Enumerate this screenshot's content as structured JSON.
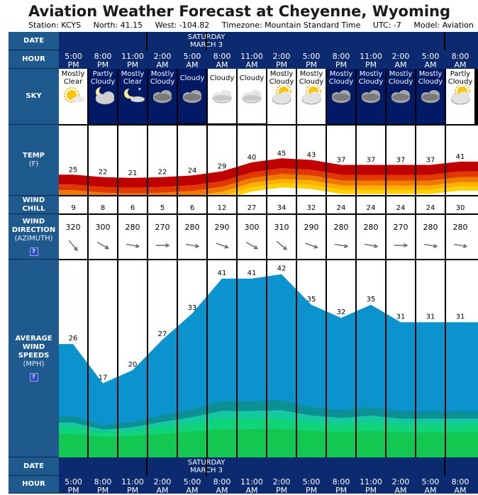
{
  "header": {
    "title": "Aviation Weather Forecast at Cheyenne, Wyoming",
    "station": "Station: KCYS",
    "north": "North: 41.15",
    "west": "West: -104.82",
    "timezone": "Timezone: Mountain Standard Time",
    "utc": "UTC: -7",
    "model": "Model: Aviation"
  },
  "labels": {
    "date": "DATE",
    "hour": "HOUR",
    "sky": "SKY",
    "temp": "TEMP",
    "temp_unit": "(F)",
    "wind_chill_1": "WIND",
    "wind_chill_2": "CHILL",
    "wind_dir_1": "WIND",
    "wind_dir_2": "DIRECTION",
    "wind_dir_unit": "(AZIMUTH)",
    "wind_speed_1": "AVERAGE",
    "wind_speed_2": "WIND",
    "wind_speed_3": "SPEEDS",
    "wind_speed_unit": "(MPH)",
    "help": "?"
  },
  "date_day": "SATURDAY",
  "date_month": "MARCH 3",
  "columns": [
    {
      "time": "5:00",
      "ampm": "PM",
      "sky1": "Mostly",
      "sky2": "Clear",
      "icon": "sun-icon",
      "night": false,
      "temp": 25,
      "chill": 9,
      "dir": 320,
      "wind": 26
    },
    {
      "time": "8:00",
      "ampm": "PM",
      "sky1": "Partly",
      "sky2": "Cloudy",
      "icon": "moon-cloud-icon",
      "night": true,
      "temp": 22,
      "chill": 8,
      "dir": 300,
      "wind": 17
    },
    {
      "time": "11:00",
      "ampm": "PM",
      "sky1": "Mostly",
      "sky2": "Clear",
      "icon": "moon-icon",
      "night": true,
      "temp": 21,
      "chill": 6,
      "dir": 280,
      "wind": 20
    },
    {
      "time": "2:00",
      "ampm": "AM",
      "sky1": "Mostly",
      "sky2": "Cloudy",
      "icon": "cloud-night-icon",
      "night": true,
      "temp": 22,
      "chill": 5,
      "dir": 270,
      "wind": 27
    },
    {
      "time": "5:00",
      "ampm": "AM",
      "sky1": "Cloudy",
      "sky2": "",
      "icon": "cloud-night-icon",
      "night": true,
      "temp": 24,
      "chill": 6,
      "dir": 280,
      "wind": 33
    },
    {
      "time": "8:00",
      "ampm": "AM",
      "sky1": "Cloudy",
      "sky2": "",
      "icon": "cloud-icon",
      "night": false,
      "temp": 29,
      "chill": 12,
      "dir": 290,
      "wind": 41
    },
    {
      "time": "11:00",
      "ampm": "AM",
      "sky1": "Cloudy",
      "sky2": "",
      "icon": "cloud-icon",
      "night": false,
      "temp": 40,
      "chill": 27,
      "dir": 300,
      "wind": 41
    },
    {
      "time": "2:00",
      "ampm": "PM",
      "sky1": "Mostly",
      "sky2": "Cloudy",
      "icon": "sun-cloud-icon",
      "night": false,
      "temp": 45,
      "chill": 34,
      "dir": 310,
      "wind": 42
    },
    {
      "time": "5:00",
      "ampm": "PM",
      "sky1": "Mostly",
      "sky2": "Cloudy",
      "icon": "sun-cloud-icon",
      "night": false,
      "temp": 43,
      "chill": 32,
      "dir": 290,
      "wind": 35
    },
    {
      "time": "8:00",
      "ampm": "PM",
      "sky1": "Mostly",
      "sky2": "Cloudy",
      "icon": "cloud-night-icon",
      "night": true,
      "temp": 37,
      "chill": 24,
      "dir": 280,
      "wind": 32
    },
    {
      "time": "11:00",
      "ampm": "PM",
      "sky1": "Mostly",
      "sky2": "Cloudy",
      "icon": "cloud-night-icon",
      "night": true,
      "temp": 37,
      "chill": 24,
      "dir": 280,
      "wind": 35
    },
    {
      "time": "2:00",
      "ampm": "AM",
      "sky1": "Mostly",
      "sky2": "Cloudy",
      "icon": "cloud-night-icon",
      "night": true,
      "temp": 37,
      "chill": 24,
      "dir": 270,
      "wind": 31
    },
    {
      "time": "5:00",
      "ampm": "AM",
      "sky1": "Mostly",
      "sky2": "Cloudy",
      "icon": "cloud-night-icon",
      "night": true,
      "temp": 37,
      "chill": 24,
      "dir": 280,
      "wind": 31
    },
    {
      "time": "8:00",
      "ampm": "AM",
      "sky1": "Partly",
      "sky2": "Cloudy",
      "icon": "sun-cloud-icon",
      "night": false,
      "temp": 41,
      "chill": 30,
      "dir": 280,
      "wind": 31
    }
  ],
  "colors": {
    "label_bg": "#1f5a8f",
    "band_bg": "#0b2a70",
    "night_bg": "#001a66",
    "wind_fill": "#0a93cc",
    "wind_layers": [
      "#0d8f96",
      "#14c8a0",
      "#10d47a",
      "#12c850"
    ],
    "temp_layers": [
      "#c00000",
      "#e03a00",
      "#f07a00",
      "#ffb000",
      "#ffd000"
    ]
  }
}
